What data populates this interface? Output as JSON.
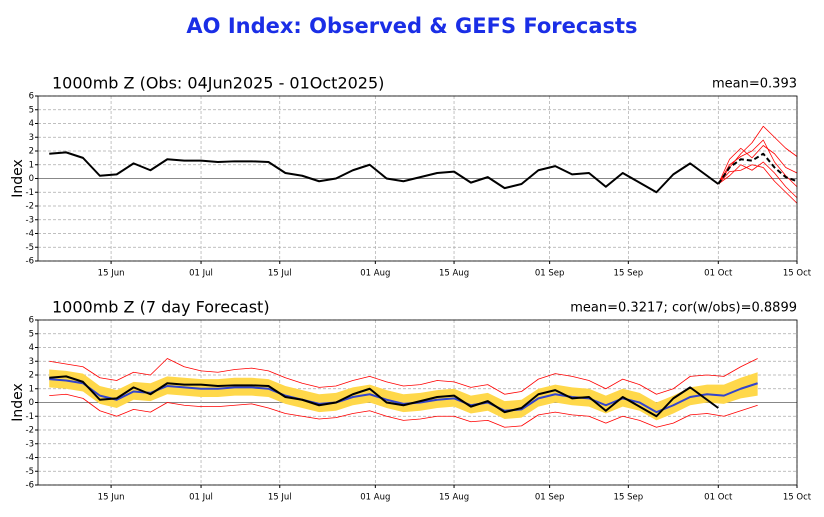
{
  "title": "AO Index: Observed & GEFS Forecasts",
  "chart_data": [
    {
      "type": "line",
      "title": "1000mb Z (Obs: 04Jun2025 - 01Oct2025)",
      "annotation": "mean=0.393",
      "ylabel": "Index",
      "xlim": [
        0,
        135
      ],
      "xticks": [
        {
          "value": 13,
          "label": "15 Jun"
        },
        {
          "value": 29,
          "label": "01 Jul"
        },
        {
          "value": 43,
          "label": "15 Jul"
        },
        {
          "value": 60,
          "label": "01 Aug"
        },
        {
          "value": 74,
          "label": "15 Aug"
        },
        {
          "value": 91,
          "label": "01 Sep"
        },
        {
          "value": 105,
          "label": "15 Sep"
        },
        {
          "value": 121,
          "label": "01 Oct"
        },
        {
          "value": 135,
          "label": "15 Oct"
        }
      ],
      "ylim": [
        -6,
        6
      ],
      "yticks": [
        -6,
        -5,
        -4,
        -3,
        -2,
        -1,
        0,
        1,
        2,
        3,
        4,
        5,
        6
      ],
      "grid": true,
      "series": [
        {
          "x": [
            121,
            123,
            125,
            127,
            129,
            131,
            133,
            135
          ],
          "values": [
            -0.4,
            0.8,
            1.8,
            2.6,
            3.8,
            3.0,
            2.2,
            1.6
          ],
          "color": "#ff0000",
          "style": "solid"
        },
        {
          "x": [
            121,
            123,
            125,
            127,
            129,
            131,
            133,
            135
          ],
          "values": [
            -0.4,
            0.2,
            1.0,
            0.6,
            1.2,
            0.4,
            -0.6,
            -1.4
          ],
          "color": "#ff0000",
          "style": "solid"
        },
        {
          "x": [
            121,
            123,
            125,
            127,
            129,
            131,
            133,
            135
          ],
          "values": [
            -0.4,
            1.4,
            2.2,
            1.5,
            2.4,
            1.8,
            0.8,
            0.4
          ],
          "color": "#ff0000",
          "style": "solid"
        },
        {
          "x": [
            121,
            123,
            125,
            127,
            129,
            131,
            133,
            135
          ],
          "values": [
            -0.4,
            0.5,
            0.6,
            1.0,
            0.8,
            -0.2,
            -1.0,
            -1.8
          ],
          "color": "#ff0000",
          "style": "solid"
        },
        {
          "x": [
            121,
            123,
            125,
            127,
            129,
            131,
            133,
            135
          ],
          "values": [
            -0.4,
            1.0,
            1.6,
            2.0,
            2.8,
            1.2,
            0.2,
            -0.6
          ],
          "color": "#ff0000",
          "style": "solid"
        },
        {
          "x": [
            121,
            123,
            125,
            127,
            129,
            131,
            133,
            135
          ],
          "values": [
            -0.4,
            0.8,
            1.4,
            1.3,
            1.8,
            0.8,
            0.1,
            -0.2
          ],
          "color": "#000000",
          "style": "dashed"
        },
        {
          "x": [
            2,
            5,
            8,
            11,
            14,
            17,
            20,
            23,
            26,
            29,
            32,
            35,
            38,
            41,
            44,
            47,
            50,
            53,
            56,
            59,
            62,
            65,
            68,
            71,
            74,
            77,
            80,
            83,
            86,
            89,
            92,
            95,
            98,
            101,
            104,
            107,
            110,
            113,
            116,
            119,
            121
          ],
          "values": [
            1.8,
            1.9,
            1.5,
            0.2,
            0.3,
            1.1,
            0.6,
            1.4,
            1.3,
            1.3,
            1.2,
            1.25,
            1.25,
            1.2,
            0.4,
            0.2,
            -0.2,
            0.0,
            0.6,
            1.0,
            0.0,
            -0.2,
            0.1,
            0.4,
            0.5,
            -0.3,
            0.1,
            -0.7,
            -0.4,
            0.6,
            0.9,
            0.3,
            0.4,
            -0.6,
            0.4,
            -0.3,
            -1.0,
            0.3,
            1.1,
            0.2,
            -0.4
          ],
          "color": "#000000",
          "style": "solid"
        }
      ]
    },
    {
      "type": "line",
      "title": "1000mb Z (7 day Forecast)",
      "annotation": "mean=0.3217; cor(w/obs)=0.8899",
      "ylabel": "Index",
      "xlim": [
        0,
        135
      ],
      "xticks": [
        {
          "value": 13,
          "label": "15 Jun"
        },
        {
          "value": 29,
          "label": "01 Jul"
        },
        {
          "value": 43,
          "label": "15 Jul"
        },
        {
          "value": 60,
          "label": "01 Aug"
        },
        {
          "value": 74,
          "label": "15 Aug"
        },
        {
          "value": 91,
          "label": "01 Sep"
        },
        {
          "value": 105,
          "label": "15 Sep"
        },
        {
          "value": 121,
          "label": "01 Oct"
        },
        {
          "value": 135,
          "label": "15 Oct"
        }
      ],
      "ylim": [
        -6,
        6
      ],
      "yticks": [
        -6,
        -5,
        -4,
        -3,
        -2,
        -1,
        0,
        1,
        2,
        3,
        4,
        5,
        6
      ],
      "grid": true,
      "series": [
        {
          "type": "band",
          "x": [
            2,
            5,
            8,
            11,
            14,
            17,
            20,
            23,
            26,
            29,
            32,
            35,
            38,
            41,
            44,
            47,
            50,
            53,
            56,
            59,
            62,
            65,
            68,
            71,
            74,
            77,
            80,
            83,
            86,
            89,
            92,
            95,
            98,
            101,
            104,
            107,
            110,
            113,
            116,
            119,
            122,
            125,
            128
          ],
          "lower": [
            1.1,
            1.0,
            0.8,
            -0.1,
            -0.4,
            0.2,
            0.1,
            0.6,
            0.5,
            0.4,
            0.4,
            0.5,
            0.5,
            0.4,
            -0.1,
            -0.4,
            -0.7,
            -0.6,
            -0.2,
            0.0,
            -0.4,
            -0.7,
            -0.6,
            -0.4,
            -0.3,
            -0.8,
            -0.6,
            -1.2,
            -1.1,
            -0.3,
            0.0,
            -0.2,
            -0.3,
            -0.8,
            -0.3,
            -0.6,
            -1.3,
            -0.8,
            -0.2,
            0.0,
            -0.1,
            0.3,
            0.5
          ],
          "upper": [
            2.4,
            2.3,
            2.1,
            1.2,
            0.9,
            1.5,
            1.4,
            1.9,
            1.8,
            1.7,
            1.7,
            1.8,
            1.8,
            1.7,
            1.2,
            0.9,
            0.6,
            0.7,
            1.1,
            1.3,
            0.9,
            0.6,
            0.7,
            0.9,
            1.0,
            0.5,
            0.7,
            0.1,
            0.2,
            1.0,
            1.3,
            1.1,
            1.0,
            0.5,
            1.0,
            0.7,
            0.0,
            0.5,
            1.1,
            1.3,
            1.3,
            1.8,
            2.2
          ],
          "color": "#ffd84a"
        },
        {
          "x": [
            2,
            5,
            8,
            11,
            14,
            17,
            20,
            23,
            26,
            29,
            32,
            35,
            38,
            41,
            44,
            47,
            50,
            53,
            56,
            59,
            62,
            65,
            68,
            71,
            74,
            77,
            80,
            83,
            86,
            89,
            92,
            95,
            98,
            101,
            104,
            107,
            110,
            113,
            116,
            119,
            122,
            125,
            128
          ],
          "values": [
            3.0,
            2.8,
            2.6,
            1.8,
            1.6,
            2.2,
            2.0,
            3.2,
            2.6,
            2.3,
            2.2,
            2.4,
            2.5,
            2.3,
            1.8,
            1.4,
            1.1,
            1.2,
            1.6,
            1.9,
            1.5,
            1.2,
            1.3,
            1.6,
            1.5,
            1.1,
            1.3,
            0.6,
            0.8,
            1.7,
            2.1,
            1.9,
            1.6,
            1.0,
            1.7,
            1.3,
            0.6,
            1.0,
            1.9,
            2.0,
            1.9,
            2.6,
            3.2
          ],
          "color": "#ff0000",
          "style": "solid"
        },
        {
          "x": [
            2,
            5,
            8,
            11,
            14,
            17,
            20,
            23,
            26,
            29,
            32,
            35,
            38,
            41,
            44,
            47,
            50,
            53,
            56,
            59,
            62,
            65,
            68,
            71,
            74,
            77,
            80,
            83,
            86,
            89,
            92,
            95,
            98,
            101,
            104,
            107,
            110,
            113,
            116,
            119,
            122,
            125,
            128
          ],
          "values": [
            0.5,
            0.6,
            0.3,
            -0.6,
            -1.0,
            -0.5,
            -0.7,
            0.0,
            -0.2,
            -0.3,
            -0.3,
            -0.2,
            -0.1,
            -0.4,
            -0.8,
            -1.0,
            -1.2,
            -1.1,
            -0.8,
            -0.6,
            -1.0,
            -1.3,
            -1.2,
            -1.0,
            -1.0,
            -1.4,
            -1.3,
            -1.8,
            -1.7,
            -0.9,
            -0.7,
            -0.9,
            -1.0,
            -1.5,
            -1.0,
            -1.3,
            -1.8,
            -1.5,
            -0.9,
            -0.8,
            -1.0,
            -0.6,
            -0.2
          ],
          "color": "#ff0000",
          "style": "solid"
        },
        {
          "x": [
            2,
            5,
            8,
            11,
            14,
            17,
            20,
            23,
            26,
            29,
            32,
            35,
            38,
            41,
            44,
            47,
            50,
            53,
            56,
            59,
            62,
            65,
            68,
            71,
            74,
            77,
            80,
            83,
            86,
            89,
            92,
            95,
            98,
            101,
            104,
            107,
            110,
            113,
            116,
            119,
            122,
            125,
            128
          ],
          "values": [
            1.7,
            1.6,
            1.4,
            0.5,
            0.2,
            0.8,
            0.7,
            1.2,
            1.1,
            1.0,
            1.0,
            1.1,
            1.1,
            1.0,
            0.5,
            0.2,
            -0.1,
            0.0,
            0.4,
            0.6,
            0.2,
            -0.1,
            0.0,
            0.2,
            0.3,
            -0.2,
            0.0,
            -0.6,
            -0.5,
            0.3,
            0.6,
            0.4,
            0.3,
            -0.2,
            0.3,
            0.0,
            -0.7,
            -0.2,
            0.4,
            0.6,
            0.5,
            1.0,
            1.4
          ],
          "color": "#3344cc",
          "style": "solid"
        },
        {
          "x": [
            2,
            5,
            8,
            11,
            14,
            17,
            20,
            23,
            26,
            29,
            32,
            35,
            38,
            41,
            44,
            47,
            50,
            53,
            56,
            59,
            62,
            65,
            68,
            71,
            74,
            77,
            80,
            83,
            86,
            89,
            92,
            95,
            98,
            101,
            104,
            107,
            110,
            113,
            116,
            119,
            121
          ],
          "values": [
            1.8,
            1.9,
            1.5,
            0.2,
            0.3,
            1.1,
            0.6,
            1.4,
            1.3,
            1.3,
            1.2,
            1.25,
            1.25,
            1.2,
            0.4,
            0.2,
            -0.2,
            0.0,
            0.6,
            1.0,
            0.0,
            -0.2,
            0.1,
            0.4,
            0.5,
            -0.3,
            0.1,
            -0.7,
            -0.4,
            0.6,
            0.9,
            0.3,
            0.4,
            -0.6,
            0.4,
            -0.3,
            -1.0,
            0.3,
            1.1,
            0.2,
            -0.4
          ],
          "color": "#000000",
          "style": "solid"
        }
      ]
    }
  ]
}
